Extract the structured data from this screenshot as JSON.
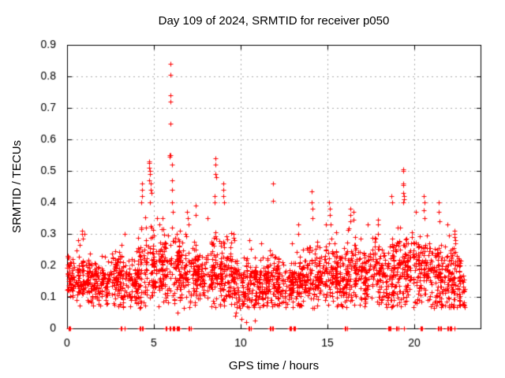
{
  "chart_data": {
    "type": "scatter",
    "title": "Day 109 of 2024, SRMTID for receiver p050",
    "xlabel": "GPS time / hours",
    "ylabel": "SRMTID / TECUs",
    "series_name": "SRMTID",
    "xlim": [
      0,
      23.82
    ],
    "ylim": [
      0,
      0.9
    ],
    "xticks": [
      0,
      5,
      10,
      15,
      20
    ],
    "yticks": [
      0,
      0.1,
      0.2,
      0.3,
      0.4,
      0.5,
      0.6,
      0.7,
      0.8,
      0.9
    ],
    "grid": true,
    "legend": "none",
    "marker": "plus",
    "marker_color": "#ff0000",
    "grid_color": "#aaaaaa",
    "axis_color": "#000000",
    "background": "#ffffff",
    "density_bins": [
      [
        0.0,
        0.5,
        60,
        0.17,
        0.04,
        0.3
      ],
      [
        0.5,
        1.0,
        60,
        0.17,
        0.045,
        0.31
      ],
      [
        1.0,
        1.5,
        55,
        0.15,
        0.04,
        0.27
      ],
      [
        1.5,
        2.0,
        55,
        0.14,
        0.035,
        0.24
      ],
      [
        2.0,
        2.5,
        55,
        0.15,
        0.035,
        0.25
      ],
      [
        2.5,
        3.0,
        55,
        0.16,
        0.04,
        0.27
      ],
      [
        3.0,
        3.5,
        55,
        0.16,
        0.045,
        0.3
      ],
      [
        3.5,
        4.0,
        50,
        0.15,
        0.04,
        0.26
      ],
      [
        4.0,
        4.5,
        60,
        0.18,
        0.06,
        0.38
      ],
      [
        4.5,
        5.0,
        60,
        0.21,
        0.07,
        0.44
      ],
      [
        5.0,
        5.5,
        55,
        0.19,
        0.05,
        0.34
      ],
      [
        5.5,
        6.0,
        55,
        0.2,
        0.06,
        0.42
      ],
      [
        6.0,
        6.5,
        55,
        0.19,
        0.06,
        0.38
      ],
      [
        6.5,
        7.0,
        55,
        0.18,
        0.05,
        0.36
      ],
      [
        7.0,
        7.5,
        55,
        0.17,
        0.05,
        0.35
      ],
      [
        7.5,
        8.0,
        55,
        0.16,
        0.04,
        0.3
      ],
      [
        8.0,
        8.5,
        55,
        0.18,
        0.05,
        0.34
      ],
      [
        8.5,
        9.0,
        60,
        0.19,
        0.06,
        0.4
      ],
      [
        9.0,
        9.5,
        55,
        0.18,
        0.055,
        0.38
      ],
      [
        9.5,
        10.0,
        55,
        0.15,
        0.05,
        0.29
      ],
      [
        10.0,
        10.5,
        55,
        0.13,
        0.05,
        0.27
      ],
      [
        10.5,
        11.0,
        55,
        0.14,
        0.045,
        0.32
      ],
      [
        11.0,
        11.5,
        55,
        0.14,
        0.04,
        0.27
      ],
      [
        11.5,
        12.0,
        55,
        0.15,
        0.05,
        0.33
      ],
      [
        12.0,
        12.5,
        55,
        0.14,
        0.04,
        0.26
      ],
      [
        12.5,
        13.0,
        55,
        0.14,
        0.04,
        0.27
      ],
      [
        13.0,
        13.5,
        55,
        0.15,
        0.045,
        0.3
      ],
      [
        13.5,
        14.0,
        55,
        0.16,
        0.05,
        0.32
      ],
      [
        14.0,
        14.5,
        55,
        0.17,
        0.055,
        0.36
      ],
      [
        14.5,
        15.0,
        55,
        0.17,
        0.05,
        0.32
      ],
      [
        15.0,
        15.5,
        60,
        0.18,
        0.055,
        0.35
      ],
      [
        15.5,
        16.0,
        55,
        0.17,
        0.05,
        0.32
      ],
      [
        16.0,
        16.5,
        55,
        0.17,
        0.055,
        0.33
      ],
      [
        16.5,
        17.0,
        55,
        0.18,
        0.055,
        0.34
      ],
      [
        17.0,
        17.5,
        55,
        0.16,
        0.05,
        0.31
      ],
      [
        17.5,
        18.0,
        55,
        0.17,
        0.055,
        0.32
      ],
      [
        18.0,
        18.5,
        55,
        0.16,
        0.05,
        0.31
      ],
      [
        18.5,
        19.0,
        60,
        0.18,
        0.06,
        0.38
      ],
      [
        19.0,
        19.5,
        60,
        0.19,
        0.065,
        0.4
      ],
      [
        19.5,
        20.0,
        55,
        0.18,
        0.055,
        0.34
      ],
      [
        20.0,
        20.5,
        55,
        0.17,
        0.055,
        0.34
      ],
      [
        20.5,
        21.0,
        55,
        0.18,
        0.06,
        0.36
      ],
      [
        21.0,
        21.5,
        55,
        0.17,
        0.055,
        0.34
      ],
      [
        21.5,
        22.0,
        55,
        0.16,
        0.05,
        0.32
      ],
      [
        22.0,
        22.5,
        60,
        0.16,
        0.055,
        0.3
      ],
      [
        22.5,
        22.9,
        50,
        0.14,
        0.05,
        0.25
      ]
    ],
    "notable_points": [
      [
        0.85,
        0.3
      ],
      [
        0.87,
        0.31
      ],
      [
        0.9,
        0.285
      ],
      [
        1.0,
        0.3
      ],
      [
        3.3,
        0.3
      ],
      [
        4.28,
        0.4
      ],
      [
        4.3,
        0.42
      ],
      [
        4.3,
        0.44
      ],
      [
        4.32,
        0.46
      ],
      [
        4.72,
        0.53
      ],
      [
        4.74,
        0.525
      ],
      [
        4.75,
        0.51
      ],
      [
        4.76,
        0.5
      ],
      [
        4.78,
        0.49
      ],
      [
        4.73,
        0.47
      ],
      [
        4.8,
        0.46
      ],
      [
        4.82,
        0.44
      ],
      [
        4.85,
        0.43
      ],
      [
        4.78,
        0.4
      ],
      [
        5.2,
        0.35
      ],
      [
        5.3,
        0.33
      ],
      [
        5.9,
        0.55
      ],
      [
        5.92,
        0.545
      ],
      [
        5.95,
        0.84
      ],
      [
        5.95,
        0.805
      ],
      [
        5.96,
        0.74
      ],
      [
        5.97,
        0.72
      ],
      [
        5.95,
        0.65
      ],
      [
        5.97,
        0.55
      ],
      [
        6.05,
        0.52
      ],
      [
        6.03,
        0.47
      ],
      [
        6.06,
        0.44
      ],
      [
        6.05,
        0.4
      ],
      [
        6.1,
        0.37
      ],
      [
        6.3,
        0.3
      ],
      [
        6.5,
        0.31
      ],
      [
        6.35,
        0.05
      ],
      [
        6.9,
        0.37
      ],
      [
        6.95,
        0.35
      ],
      [
        7.0,
        0.33
      ],
      [
        7.4,
        0.39
      ],
      [
        7.42,
        0.36
      ],
      [
        8.1,
        0.35
      ],
      [
        8.55,
        0.54
      ],
      [
        8.56,
        0.52
      ],
      [
        8.55,
        0.49
      ],
      [
        8.57,
        0.48
      ],
      [
        8.5,
        0.42
      ],
      [
        8.52,
        0.4
      ],
      [
        9.0,
        0.46
      ],
      [
        9.0,
        0.44
      ],
      [
        9.02,
        0.42
      ],
      [
        9.05,
        0.4
      ],
      [
        9.6,
        0.3
      ],
      [
        9.65,
        0.28
      ],
      [
        9.7,
        0.04
      ],
      [
        9.75,
        0.05
      ],
      [
        10.05,
        0.03
      ],
      [
        10.3,
        0.02
      ],
      [
        10.5,
        0.28
      ],
      [
        10.8,
        0.025
      ],
      [
        11.2,
        0.27
      ],
      [
        11.85,
        0.46
      ],
      [
        11.87,
        0.405
      ],
      [
        12.95,
        0.27
      ],
      [
        13.3,
        0.33
      ],
      [
        13.32,
        0.3
      ],
      [
        14.1,
        0.435
      ],
      [
        14.1,
        0.4
      ],
      [
        14.12,
        0.38
      ],
      [
        14.15,
        0.35
      ],
      [
        14.9,
        0.33
      ],
      [
        15.1,
        0.4
      ],
      [
        15.12,
        0.38
      ],
      [
        15.15,
        0.36
      ],
      [
        15.2,
        0.33
      ],
      [
        16.3,
        0.38
      ],
      [
        16.32,
        0.36
      ],
      [
        16.3,
        0.34
      ],
      [
        16.5,
        0.37
      ],
      [
        16.52,
        0.345
      ],
      [
        17.3,
        0.33
      ],
      [
        17.9,
        0.345
      ],
      [
        17.92,
        0.33
      ],
      [
        17.9,
        0.3
      ],
      [
        18.7,
        0.42
      ],
      [
        18.72,
        0.4
      ],
      [
        19.35,
        0.505
      ],
      [
        19.35,
        0.5
      ],
      [
        19.36,
        0.46
      ],
      [
        19.37,
        0.455
      ],
      [
        19.35,
        0.43
      ],
      [
        19.4,
        0.42
      ],
      [
        19.42,
        0.41
      ],
      [
        19.38,
        0.4
      ],
      [
        20.1,
        0.37
      ],
      [
        20.55,
        0.42
      ],
      [
        20.57,
        0.4
      ],
      [
        20.55,
        0.375
      ],
      [
        20.6,
        0.35
      ],
      [
        21.4,
        0.4
      ],
      [
        21.42,
        0.37
      ],
      [
        21.45,
        0.34
      ],
      [
        21.9,
        0.33
      ],
      [
        22.3,
        0.31
      ],
      [
        22.32,
        0.3
      ],
      [
        22.3,
        0.29
      ],
      [
        22.35,
        0.28
      ]
    ],
    "zero_marker_x": [
      0.1,
      0.15,
      0.2,
      3.1,
      3.15,
      3.3,
      4.2,
      4.25,
      4.3,
      4.35,
      5.7,
      5.75,
      5.9,
      5.95,
      6.1,
      6.15,
      6.2,
      6.3,
      6.35,
      6.4,
      6.45,
      7.0,
      7.05,
      7.15,
      10.45,
      10.5,
      10.6,
      11.7,
      11.75,
      11.8,
      11.85,
      12.8,
      12.85,
      12.9,
      13.05,
      13.1,
      13.15,
      16.0,
      16.05,
      16.15,
      18.5,
      18.55,
      18.6,
      18.65,
      18.95,
      19.0,
      19.1,
      19.4,
      20.35,
      20.4,
      20.45,
      21.35,
      21.4,
      21.5,
      21.55,
      21.9,
      21.95,
      22.05,
      22.1,
      22.15,
      22.3
    ]
  }
}
